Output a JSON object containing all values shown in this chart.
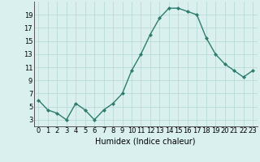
{
  "x": [
    0,
    1,
    2,
    3,
    4,
    5,
    6,
    7,
    8,
    9,
    10,
    11,
    12,
    13,
    14,
    15,
    16,
    17,
    18,
    19,
    20,
    21,
    22,
    23
  ],
  "y": [
    6,
    4.5,
    4,
    3,
    5.5,
    4.5,
    3,
    4.5,
    5.5,
    7,
    10.5,
    13,
    16,
    18.5,
    20,
    20,
    19.5,
    19,
    15.5,
    13,
    11.5,
    10.5,
    9.5,
    10.5
  ],
  "line_color": "#2e7d6e",
  "marker": "D",
  "marker_size": 2.0,
  "bg_color": "#d9f0ef",
  "grid_color": "#b8dbd8",
  "xlabel": "Humidex (Indice chaleur)",
  "ylim": [
    2,
    21
  ],
  "xlim": [
    -0.5,
    23.5
  ],
  "yticks": [
    3,
    5,
    7,
    9,
    11,
    13,
    15,
    17,
    19
  ],
  "xticks": [
    0,
    1,
    2,
    3,
    4,
    5,
    6,
    7,
    8,
    9,
    10,
    11,
    12,
    13,
    14,
    15,
    16,
    17,
    18,
    19,
    20,
    21,
    22,
    23
  ],
  "xlabel_fontsize": 7.0,
  "tick_fontsize": 6.0,
  "linewidth": 1.0
}
